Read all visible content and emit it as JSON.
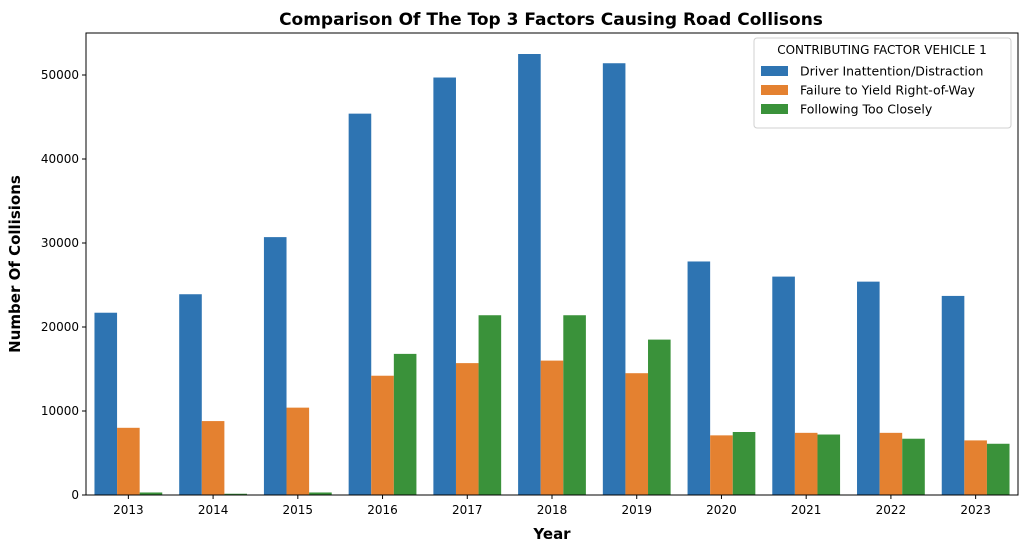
{
  "chart_data": {
    "type": "bar",
    "title": "Comparison Of The Top 3 Factors Causing Road Collisons",
    "xlabel": "Year",
    "ylabel": "Number Of Collisions",
    "categories": [
      "2013",
      "2014",
      "2015",
      "2016",
      "2017",
      "2018",
      "2019",
      "2020",
      "2021",
      "2022",
      "2023"
    ],
    "ylim": [
      0,
      55000
    ],
    "yticks": [
      0,
      10000,
      20000,
      30000,
      40000,
      50000
    ],
    "legend": {
      "title": "CONTRIBUTING FACTOR VEHICLE 1",
      "placement": "top-right"
    },
    "series": [
      {
        "name": "Driver Inattention/Distraction",
        "color": "#2e74b2",
        "values": [
          21700,
          23900,
          30700,
          45400,
          49700,
          52500,
          51400,
          27800,
          26000,
          25400,
          23700
        ]
      },
      {
        "name": "Failure to Yield Right-of-Way",
        "color": "#e48130",
        "values": [
          8000,
          8800,
          10400,
          14200,
          15700,
          16000,
          14500,
          7100,
          7400,
          7400,
          6500
        ]
      },
      {
        "name": "Following Too Closely",
        "color": "#3a923a",
        "values": [
          300,
          150,
          300,
          16800,
          21400,
          21400,
          18500,
          7500,
          7200,
          6700,
          6100
        ]
      }
    ]
  }
}
